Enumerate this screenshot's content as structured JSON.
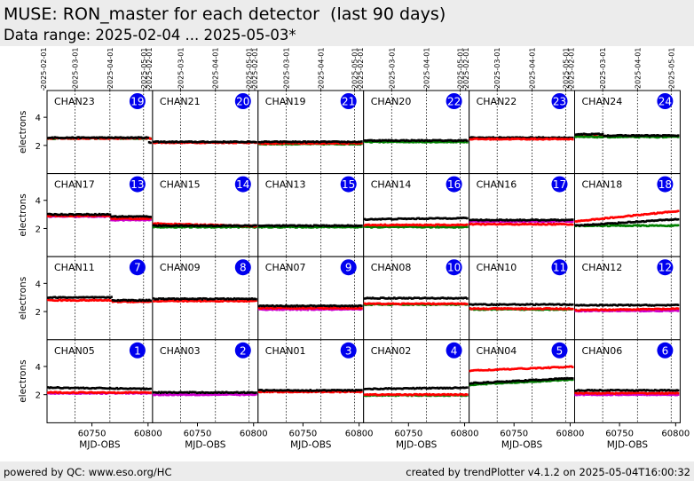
{
  "header": {
    "title": "MUSE: RON_master for each detector  (last 90 days)",
    "subtitle": "Data range: 2025-02-04 ... 2025-05-03*"
  },
  "footer": {
    "left": "powered by QC: www.eso.org/HC",
    "right": "created by trendPlotter v4.1.2 on 2025-05-04T16:00:32"
  },
  "chart_data": {
    "type": "scatter",
    "layout": "small-multiples",
    "grid": {
      "rows": 4,
      "cols": 6
    },
    "xlabel": "MJD-OBS",
    "ylabel": "electrons",
    "xlim": [
      60710,
      60804
    ],
    "ylim": [
      0,
      5.9
    ],
    "x_ticks": [
      60750,
      60800
    ],
    "y_ticks": [
      2,
      4
    ],
    "date_ticks": [
      {
        "label": "2025-02-01",
        "mjd": 60707
      },
      {
        "label": "2025-03-01",
        "mjd": 60735
      },
      {
        "label": "2025-04-01",
        "mjd": 60766
      },
      {
        "label": "2025-05-01",
        "mjd": 60796
      }
    ],
    "colors": {
      "black": "#000000",
      "red": "#ff0000",
      "green": "#008000",
      "magenta": "#cc00cc",
      "badge": "#0000ee",
      "vline": "#000000"
    },
    "panels": [
      {
        "channel": "CHAN23",
        "badge": "19",
        "series": [
          {
            "color": "green",
            "level": 2.5,
            "slope": 0,
            "offsets": []
          },
          {
            "color": "red",
            "level": 2.5,
            "slope": 0,
            "offsets": []
          },
          {
            "color": "black",
            "level": 2.55,
            "slope": 0,
            "offsets": [
              [
                60800,
                60804,
                -0.35
              ]
            ]
          }
        ]
      },
      {
        "channel": "CHAN21",
        "badge": "20",
        "series": [
          {
            "color": "red",
            "level": 2.2,
            "slope": 0,
            "offsets": []
          },
          {
            "color": "black",
            "level": 2.25,
            "slope": 0,
            "offsets": []
          }
        ]
      },
      {
        "channel": "CHAN19",
        "badge": "21",
        "series": [
          {
            "color": "green",
            "level": 2.1,
            "slope": 0,
            "offsets": []
          },
          {
            "color": "red",
            "level": 2.15,
            "slope": 0,
            "offsets": []
          },
          {
            "color": "black",
            "level": 2.25,
            "slope": 0,
            "offsets": []
          }
        ]
      },
      {
        "channel": "CHAN20",
        "badge": "22",
        "series": [
          {
            "color": "green",
            "level": 2.25,
            "slope": 0,
            "offsets": []
          },
          {
            "color": "black",
            "level": 2.35,
            "slope": 0,
            "offsets": []
          }
        ]
      },
      {
        "channel": "CHAN22",
        "badge": "23",
        "series": [
          {
            "color": "black",
            "level": 2.55,
            "slope": 0,
            "offsets": []
          },
          {
            "color": "red",
            "level": 2.45,
            "slope": 0,
            "offsets": []
          }
        ]
      },
      {
        "channel": "CHAN24",
        "badge": "24",
        "series": [
          {
            "color": "red",
            "level": 2.65,
            "slope": 0,
            "offsets": []
          },
          {
            "color": "green",
            "level": 2.6,
            "slope": 0,
            "offsets": []
          },
          {
            "color": "black",
            "level": 2.7,
            "slope": 0,
            "offsets": [
              [
                60710,
                60736,
                0.1
              ]
            ]
          }
        ]
      },
      {
        "channel": "CHAN17",
        "badge": "13",
        "series": [
          {
            "color": "magenta",
            "level": 2.85,
            "slope": 0,
            "offsets": [
              [
                60767,
                60804,
                -0.25
              ]
            ]
          },
          {
            "color": "red",
            "level": 2.9,
            "slope": 0,
            "offsets": [
              [
                60767,
                60804,
                -0.2
              ]
            ]
          },
          {
            "color": "black",
            "level": 3.0,
            "slope": 0,
            "offsets": [
              [
                60767,
                60804,
                -0.15
              ]
            ]
          }
        ]
      },
      {
        "channel": "CHAN15",
        "badge": "14",
        "series": [
          {
            "color": "green",
            "level": 2.1,
            "slope": 0,
            "offsets": []
          },
          {
            "color": "red",
            "level": 2.35,
            "slope": -0.002,
            "offsets": []
          },
          {
            "color": "black",
            "level": 2.2,
            "slope": 0,
            "offsets": []
          }
        ]
      },
      {
        "channel": "CHAN13",
        "badge": "15",
        "series": [
          {
            "color": "green",
            "level": 2.1,
            "slope": 0,
            "offsets": []
          },
          {
            "color": "black",
            "level": 2.2,
            "slope": 0,
            "offsets": []
          }
        ]
      },
      {
        "channel": "CHAN14",
        "badge": "16",
        "series": [
          {
            "color": "green",
            "level": 2.1,
            "slope": 0,
            "offsets": []
          },
          {
            "color": "red",
            "level": 2.25,
            "slope": 0,
            "offsets": []
          },
          {
            "color": "black",
            "level": 2.65,
            "slope": 0.001,
            "offsets": []
          }
        ]
      },
      {
        "channel": "CHAN16",
        "badge": "17",
        "series": [
          {
            "color": "magenta",
            "level": 2.5,
            "slope": 0,
            "offsets": []
          },
          {
            "color": "black",
            "level": 2.6,
            "slope": 0,
            "offsets": []
          },
          {
            "color": "red",
            "level": 2.3,
            "slope": 0,
            "offsets": []
          }
        ]
      },
      {
        "channel": "CHAN18",
        "badge": "18",
        "series": [
          {
            "color": "green",
            "level": 2.2,
            "slope": 0,
            "offsets": []
          },
          {
            "color": "black",
            "level": 2.2,
            "slope": 0.005,
            "offsets": []
          },
          {
            "color": "red",
            "level": 2.5,
            "slope": 0.008,
            "offsets": []
          }
        ]
      },
      {
        "channel": "CHAN11",
        "badge": "7",
        "series": [
          {
            "color": "red",
            "level": 2.8,
            "slope": 0,
            "offsets": [
              [
                60768,
                60804,
                -0.1
              ]
            ]
          },
          {
            "color": "black",
            "level": 3.0,
            "slope": 0,
            "offsets": [
              [
                60768,
                60804,
                -0.2
              ]
            ]
          }
        ]
      },
      {
        "channel": "CHAN09",
        "badge": "8",
        "series": [
          {
            "color": "red",
            "level": 2.75,
            "slope": 0,
            "offsets": []
          },
          {
            "color": "black",
            "level": 2.9,
            "slope": 0,
            "offsets": []
          }
        ]
      },
      {
        "channel": "CHAN07",
        "badge": "9",
        "series": [
          {
            "color": "magenta",
            "level": 2.15,
            "slope": 0,
            "offsets": []
          },
          {
            "color": "red",
            "level": 2.25,
            "slope": 0,
            "offsets": []
          },
          {
            "color": "black",
            "level": 2.4,
            "slope": 0,
            "offsets": []
          }
        ]
      },
      {
        "channel": "CHAN08",
        "badge": "10",
        "series": [
          {
            "color": "green",
            "level": 2.5,
            "slope": 0,
            "offsets": []
          },
          {
            "color": "red",
            "level": 2.55,
            "slope": 0,
            "offsets": []
          },
          {
            "color": "black",
            "level": 2.95,
            "slope": 0,
            "offsets": []
          }
        ]
      },
      {
        "channel": "CHAN10",
        "badge": "11",
        "series": [
          {
            "color": "green",
            "level": 2.15,
            "slope": 0,
            "offsets": []
          },
          {
            "color": "red",
            "level": 2.2,
            "slope": 0,
            "offsets": []
          },
          {
            "color": "black",
            "level": 2.5,
            "slope": 0,
            "offsets": []
          }
        ]
      },
      {
        "channel": "CHAN12",
        "badge": "12",
        "series": [
          {
            "color": "magenta",
            "level": 2.05,
            "slope": 0,
            "offsets": []
          },
          {
            "color": "red",
            "level": 2.1,
            "slope": 0.001,
            "offsets": []
          },
          {
            "color": "black",
            "level": 2.45,
            "slope": 0,
            "offsets": []
          }
        ]
      },
      {
        "channel": "CHAN05",
        "badge": "1",
        "series": [
          {
            "color": "magenta",
            "level": 2.1,
            "slope": 0,
            "offsets": []
          },
          {
            "color": "red",
            "level": 2.15,
            "slope": 0,
            "offsets": []
          },
          {
            "color": "black",
            "level": 2.5,
            "slope": -0.001,
            "offsets": []
          }
        ]
      },
      {
        "channel": "CHAN03",
        "badge": "2",
        "series": [
          {
            "color": "magenta",
            "level": 2.0,
            "slope": 0,
            "offsets": []
          },
          {
            "color": "black",
            "level": 2.15,
            "slope": 0,
            "offsets": []
          }
        ]
      },
      {
        "channel": "CHAN01",
        "badge": "3",
        "series": [
          {
            "color": "red",
            "level": 2.2,
            "slope": 0,
            "offsets": []
          },
          {
            "color": "black",
            "level": 2.3,
            "slope": 0,
            "offsets": []
          }
        ]
      },
      {
        "channel": "CHAN02",
        "badge": "4",
        "series": [
          {
            "color": "green",
            "level": 1.95,
            "slope": 0,
            "offsets": []
          },
          {
            "color": "red",
            "level": 2.0,
            "slope": 0,
            "offsets": []
          },
          {
            "color": "black",
            "level": 2.4,
            "slope": 0.001,
            "offsets": []
          }
        ]
      },
      {
        "channel": "CHAN04",
        "badge": "5",
        "series": [
          {
            "color": "green",
            "level": 2.7,
            "slope": 0.004,
            "offsets": []
          },
          {
            "color": "black",
            "level": 2.8,
            "slope": 0.004,
            "offsets": []
          },
          {
            "color": "red",
            "level": 3.7,
            "slope": 0.003,
            "offsets": []
          }
        ]
      },
      {
        "channel": "CHAN06",
        "badge": "6",
        "series": [
          {
            "color": "magenta",
            "level": 2.0,
            "slope": 0,
            "offsets": []
          },
          {
            "color": "red",
            "level": 2.1,
            "slope": 0,
            "offsets": []
          },
          {
            "color": "black",
            "level": 2.3,
            "slope": 0,
            "offsets": []
          }
        ]
      }
    ]
  }
}
